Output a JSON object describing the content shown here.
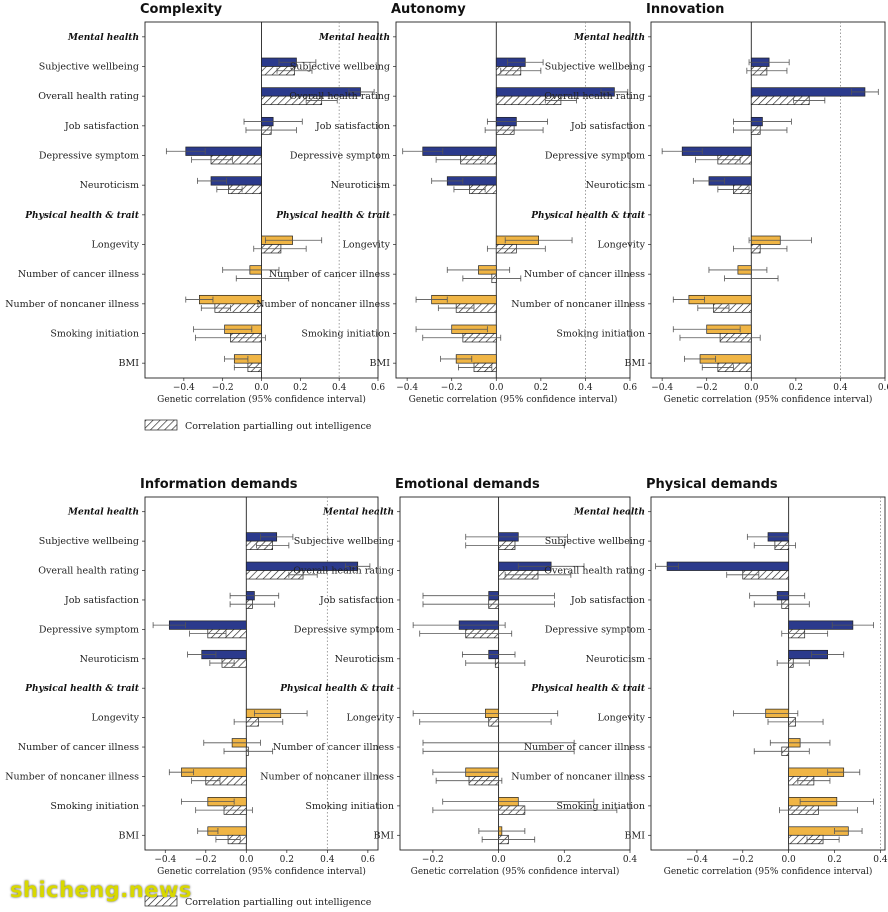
{
  "labels": {
    "section_mental": "Mental health",
    "section_physical": "Physical health & trait",
    "xlabel": "Genetic correlation (95% confidence interval)",
    "legend": "Correlation partialling out intelligence"
  },
  "watermark": "shicheng.news",
  "colors": {
    "mental": "#2b3a8c",
    "physical": "#f0b545",
    "partial_fill": "#ffffff"
  },
  "chart_data": [
    {
      "type": "bar",
      "title": "Complexity",
      "categories": [
        "Subjective wellbeing",
        "Overall health rating",
        "Job satisfaction",
        "Depressive symptom",
        "Neuroticism",
        "Longevity",
        "Number of cancer illness",
        "Number of noncaner illness",
        "Smoking initiation",
        "BMI"
      ],
      "groups": [
        "mental",
        "mental",
        "mental",
        "mental",
        "mental",
        "physical",
        "physical",
        "physical",
        "physical",
        "physical"
      ],
      "xlim": [
        -0.6,
        0.6
      ],
      "ticks": [
        -0.4,
        -0.2,
        0.0,
        0.2,
        0.4,
        0.6
      ],
      "ticklabels": [
        "−0.4",
        "−0.2",
        "0.0",
        "0.2",
        "0.4",
        "0.6"
      ],
      "refline": 0.4,
      "series": [
        {
          "name": "Genetic correlation",
          "values": [
            0.18,
            0.51,
            0.06,
            -0.39,
            -0.26,
            0.16,
            -0.06,
            -0.32,
            -0.19,
            -0.14
          ],
          "ci_low": [
            0.09,
            0.45,
            -0.09,
            -0.49,
            -0.33,
            0.02,
            -0.2,
            -0.39,
            -0.35,
            -0.19
          ],
          "ci_high": [
            0.28,
            0.58,
            0.21,
            -0.29,
            -0.18,
            0.31,
            0.09,
            -0.25,
            -0.05,
            -0.07
          ]
        },
        {
          "name": "Correlation partialling out intelligence",
          "values": [
            0.17,
            0.31,
            0.05,
            -0.26,
            -0.17,
            0.1,
            0.0,
            -0.24,
            -0.16,
            -0.07
          ],
          "ci_low": [
            0.08,
            0.23,
            -0.08,
            -0.36,
            -0.23,
            -0.04,
            -0.13,
            -0.31,
            -0.34,
            -0.14
          ],
          "ci_high": [
            0.26,
            0.39,
            0.18,
            -0.15,
            -0.1,
            0.23,
            0.14,
            -0.16,
            0.02,
            0.0
          ]
        }
      ]
    },
    {
      "type": "bar",
      "title": "Autonomy",
      "categories": [
        "Subjective wellbeing",
        "Overall health rating",
        "Job satisfaction",
        "Depressive symptom",
        "Neuroticism",
        "Longevity",
        "Number of cancer illness",
        "Number of noncaner illness",
        "Smoking initiation",
        "BMI"
      ],
      "groups": [
        "mental",
        "mental",
        "mental",
        "mental",
        "mental",
        "physical",
        "physical",
        "physical",
        "physical",
        "physical"
      ],
      "xlim": [
        -0.45,
        0.6
      ],
      "ticks": [
        -0.4,
        -0.2,
        0.0,
        0.2,
        0.4,
        0.6
      ],
      "ticklabels": [
        "−0.4",
        "−0.2",
        "0.0",
        "0.2",
        "0.4",
        "0.6"
      ],
      "refline": 0.4,
      "series": [
        {
          "name": "Genetic correlation",
          "values": [
            0.13,
            0.53,
            0.09,
            -0.33,
            -0.22,
            0.19,
            -0.08,
            -0.29,
            -0.2,
            -0.18
          ],
          "ci_low": [
            0.05,
            0.47,
            -0.04,
            -0.42,
            -0.29,
            0.04,
            -0.22,
            -0.36,
            -0.36,
            -0.25
          ],
          "ci_high": [
            0.21,
            0.59,
            0.23,
            -0.24,
            -0.15,
            0.34,
            0.06,
            -0.22,
            -0.04,
            -0.11
          ]
        },
        {
          "name": "Correlation partialling out intelligence",
          "values": [
            0.11,
            0.29,
            0.08,
            -0.16,
            -0.12,
            0.09,
            -0.02,
            -0.18,
            -0.15,
            -0.1
          ],
          "ci_low": [
            0.02,
            0.22,
            -0.05,
            -0.27,
            -0.19,
            -0.04,
            -0.15,
            -0.26,
            -0.33,
            -0.17
          ],
          "ci_high": [
            0.2,
            0.36,
            0.21,
            -0.05,
            -0.05,
            0.22,
            0.11,
            -0.1,
            0.02,
            -0.02
          ]
        }
      ]
    },
    {
      "type": "bar",
      "title": "Innovation",
      "categories": [
        "Subjective wellbeing",
        "Overall health rating",
        "Job satisfaction",
        "Depressive symptom",
        "Neuroticism",
        "Longevity",
        "Number of cancer illness",
        "Number of noncaner illness",
        "Smoking initiation",
        "BMI"
      ],
      "groups": [
        "mental",
        "mental",
        "mental",
        "mental",
        "mental",
        "physical",
        "physical",
        "physical",
        "physical",
        "physical"
      ],
      "xlim": [
        -0.45,
        0.6
      ],
      "ticks": [
        -0.4,
        -0.2,
        0.0,
        0.2,
        0.4,
        0.6
      ],
      "ticklabels": [
        "−0.4",
        "−0.2",
        "0.0",
        "0.2",
        "0.4",
        "0.6"
      ],
      "refline": 0.4,
      "series": [
        {
          "name": "Genetic correlation",
          "values": [
            0.08,
            0.51,
            0.05,
            -0.31,
            -0.19,
            0.13,
            -0.06,
            -0.28,
            -0.2,
            -0.23
          ],
          "ci_low": [
            -0.01,
            0.45,
            -0.08,
            -0.4,
            -0.26,
            -0.01,
            -0.19,
            -0.35,
            -0.35,
            -0.3
          ],
          "ci_high": [
            0.17,
            0.57,
            0.18,
            -0.22,
            -0.12,
            0.27,
            0.07,
            -0.21,
            -0.05,
            -0.16
          ]
        },
        {
          "name": "Correlation partialling out intelligence",
          "values": [
            0.07,
            0.26,
            0.04,
            -0.15,
            -0.08,
            0.04,
            0.0,
            -0.17,
            -0.14,
            -0.15
          ],
          "ci_low": [
            -0.02,
            0.19,
            -0.08,
            -0.25,
            -0.15,
            -0.08,
            -0.12,
            -0.24,
            -0.32,
            -0.22
          ],
          "ci_high": [
            0.16,
            0.33,
            0.16,
            -0.05,
            -0.01,
            0.16,
            0.12,
            -0.1,
            0.04,
            -0.08
          ]
        }
      ]
    },
    {
      "type": "bar",
      "title": "Information demands",
      "categories": [
        "Subjective wellbeing",
        "Overall health rating",
        "Job satisfaction",
        "Depressive symptom",
        "Neuroticism",
        "Longevity",
        "Number of cancer illness",
        "Number of noncaner illness",
        "Smoking initiation",
        "BMI"
      ],
      "groups": [
        "mental",
        "mental",
        "mental",
        "mental",
        "mental",
        "physical",
        "physical",
        "physical",
        "physical",
        "physical"
      ],
      "xlim": [
        -0.5,
        0.65
      ],
      "ticks": [
        -0.4,
        -0.2,
        0.0,
        0.2,
        0.4,
        0.6
      ],
      "ticklabels": [
        "−0.4",
        "−0.2",
        "0.0",
        "0.2",
        "0.4",
        "0.6"
      ],
      "refline": 0.4,
      "series": [
        {
          "name": "Genetic correlation",
          "values": [
            0.15,
            0.55,
            0.04,
            -0.38,
            -0.22,
            0.17,
            -0.07,
            -0.32,
            -0.19,
            -0.19
          ],
          "ci_low": [
            0.07,
            0.49,
            -0.08,
            -0.46,
            -0.29,
            0.04,
            -0.21,
            -0.38,
            -0.32,
            -0.24
          ],
          "ci_high": [
            0.23,
            0.61,
            0.16,
            -0.3,
            -0.15,
            0.3,
            0.07,
            -0.26,
            -0.06,
            -0.14
          ]
        },
        {
          "name": "Correlation partialling out intelligence",
          "values": [
            0.13,
            0.28,
            0.03,
            -0.19,
            -0.12,
            0.06,
            0.01,
            -0.2,
            -0.11,
            -0.09
          ],
          "ci_low": [
            0.05,
            0.21,
            -0.08,
            -0.28,
            -0.18,
            -0.06,
            -0.11,
            -0.27,
            -0.25,
            -0.15
          ],
          "ci_high": [
            0.21,
            0.35,
            0.14,
            -0.1,
            -0.06,
            0.18,
            0.13,
            -0.13,
            0.03,
            -0.03
          ]
        }
      ]
    },
    {
      "type": "bar",
      "title": "Emotional demands",
      "categories": [
        "Subjective wellbeing",
        "Overall health rating",
        "Job satisfaction",
        "Depressive symptom",
        "Neuroticism",
        "Longevity",
        "Number of cancer illness",
        "Number of noncaner illness",
        "Smoking initiation",
        "BMI"
      ],
      "groups": [
        "mental",
        "mental",
        "mental",
        "mental",
        "mental",
        "physical",
        "physical",
        "physical",
        "physical",
        "physical"
      ],
      "xlim": [
        -0.3,
        0.4
      ],
      "ticks": [
        -0.2,
        0.0,
        0.2,
        0.4
      ],
      "ticklabels": [
        "−0.2",
        "0.0",
        "0.2",
        "0.4"
      ],
      "refline": null,
      "series": [
        {
          "name": "Genetic correlation",
          "values": [
            0.06,
            0.16,
            -0.03,
            -0.12,
            -0.03,
            -0.04,
            0.0,
            -0.1,
            0.06,
            0.01
          ],
          "ci_low": [
            -0.1,
            0.06,
            -0.23,
            -0.26,
            -0.11,
            -0.26,
            -0.23,
            -0.2,
            -0.17,
            -0.06
          ],
          "ci_high": [
            0.21,
            0.26,
            0.17,
            0.02,
            0.05,
            0.18,
            0.23,
            0.0,
            0.29,
            0.08
          ]
        },
        {
          "name": "Correlation partialling out intelligence",
          "values": [
            0.05,
            0.12,
            -0.03,
            -0.1,
            -0.01,
            -0.03,
            0.0,
            -0.09,
            0.08,
            0.03
          ],
          "ci_low": [
            -0.1,
            0.02,
            -0.23,
            -0.24,
            -0.1,
            -0.24,
            -0.23,
            -0.19,
            -0.2,
            -0.05
          ],
          "ci_high": [
            0.2,
            0.22,
            0.17,
            0.04,
            0.08,
            0.16,
            0.23,
            0.01,
            0.36,
            0.11
          ]
        }
      ]
    },
    {
      "type": "bar",
      "title": "Physical demands",
      "categories": [
        "Subjective wellbeing",
        "Overall health rating",
        "Job satisfaction",
        "Depressive symptom",
        "Neuroticism",
        "Longevity",
        "Number of cancer illness",
        "Number of noncaner illness",
        "Smoking initiation",
        "BMI"
      ],
      "groups": [
        "mental",
        "mental",
        "mental",
        "mental",
        "mental",
        "physical",
        "physical",
        "physical",
        "physical",
        "physical"
      ],
      "xlim": [
        -0.6,
        0.42
      ],
      "ticks": [
        -0.4,
        -0.2,
        0.0,
        0.2,
        0.4
      ],
      "ticklabels": [
        "−0.4",
        "−0.2",
        "0.0",
        "0.2",
        "0.4"
      ],
      "refline": 0.4,
      "series": [
        {
          "name": "Genetic correlation",
          "values": [
            -0.09,
            -0.53,
            -0.05,
            0.28,
            0.17,
            -0.1,
            0.05,
            0.24,
            0.21,
            0.26
          ],
          "ci_low": [
            -0.18,
            -0.58,
            -0.17,
            0.19,
            0.1,
            -0.24,
            -0.08,
            0.17,
            0.05,
            0.2
          ],
          "ci_high": [
            0.0,
            -0.48,
            0.07,
            0.37,
            0.24,
            0.04,
            0.18,
            0.31,
            0.37,
            0.32
          ]
        },
        {
          "name": "Correlation partialling out intelligence",
          "values": [
            -0.06,
            -0.2,
            -0.03,
            0.07,
            0.02,
            0.03,
            -0.03,
            0.11,
            0.13,
            0.15
          ],
          "ci_low": [
            -0.15,
            -0.27,
            -0.15,
            -0.03,
            -0.05,
            -0.09,
            -0.15,
            0.04,
            -0.04,
            0.08
          ],
          "ci_high": [
            0.03,
            -0.13,
            0.09,
            0.17,
            0.09,
            0.15,
            0.09,
            0.18,
            0.3,
            0.22
          ]
        }
      ]
    }
  ]
}
